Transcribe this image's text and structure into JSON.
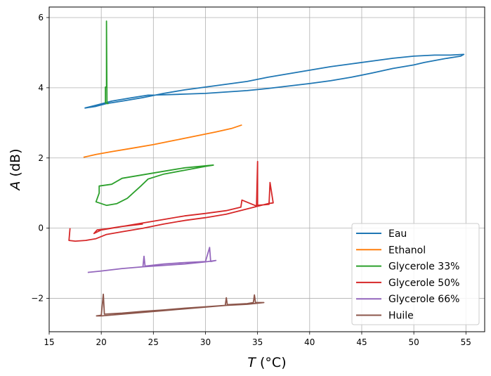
{
  "chart_data": {
    "type": "line",
    "xlabel_var": "T",
    "xlabel_unit": " (°C)",
    "ylabel_var": "A",
    "ylabel_unit": " (dB)",
    "xlim": [
      15,
      56.8
    ],
    "ylim": [
      -2.95,
      6.3
    ],
    "xticks": [
      15,
      20,
      25,
      30,
      35,
      40,
      45,
      50,
      55
    ],
    "yticks": [
      -2,
      0,
      2,
      4,
      6
    ],
    "ytick_labels": [
      "−2",
      "0",
      "2",
      "4",
      "6"
    ],
    "grid": true,
    "legend_position": "bottom-right",
    "series": [
      {
        "name": "Eau",
        "color": "#1f77b4",
        "points": [
          [
            18.4,
            3.42
          ],
          [
            19.5,
            3.47
          ],
          [
            20.5,
            3.55
          ],
          [
            22,
            3.62
          ],
          [
            24,
            3.72
          ],
          [
            26,
            3.84
          ],
          [
            28,
            3.94
          ],
          [
            30,
            4.02
          ],
          [
            32,
            4.1
          ],
          [
            34,
            4.18
          ],
          [
            36,
            4.3
          ],
          [
            38,
            4.4
          ],
          [
            40,
            4.5
          ],
          [
            42,
            4.6
          ],
          [
            44,
            4.68
          ],
          [
            46,
            4.76
          ],
          [
            48,
            4.84
          ],
          [
            50,
            4.9
          ],
          [
            52,
            4.93
          ],
          [
            53.5,
            4.93
          ],
          [
            54.8,
            4.95
          ],
          [
            54.5,
            4.9
          ],
          [
            53,
            4.83
          ],
          [
            51,
            4.72
          ],
          [
            50,
            4.65
          ],
          [
            48,
            4.55
          ],
          [
            46,
            4.42
          ],
          [
            44,
            4.3
          ],
          [
            42,
            4.2
          ],
          [
            40,
            4.12
          ],
          [
            38,
            4.05
          ],
          [
            36,
            3.98
          ],
          [
            34,
            3.92
          ],
          [
            32,
            3.88
          ],
          [
            30,
            3.84
          ],
          [
            28,
            3.82
          ],
          [
            26,
            3.8
          ],
          [
            24.5,
            3.79
          ],
          [
            23,
            3.72
          ],
          [
            21,
            3.62
          ],
          [
            19.5,
            3.5
          ],
          [
            18.4,
            3.42
          ]
        ]
      },
      {
        "name": "Ethanol",
        "color": "#ff7f0e",
        "points": [
          [
            18.3,
            2.02
          ],
          [
            19.5,
            2.1
          ],
          [
            21,
            2.18
          ],
          [
            23,
            2.28
          ],
          [
            25,
            2.38
          ],
          [
            27,
            2.5
          ],
          [
            29,
            2.62
          ],
          [
            31,
            2.74
          ],
          [
            32.5,
            2.84
          ],
          [
            33.5,
            2.94
          ]
        ]
      },
      {
        "name": "Glycerole 33%",
        "color": "#2ca02c",
        "points": [
          [
            20.4,
            3.55
          ],
          [
            20.4,
            4.02
          ],
          [
            20.5,
            4.02
          ],
          [
            20.5,
            5.9
          ],
          [
            20.55,
            3.55
          ],
          [
            20.7,
            3.55
          ],
          [
            null,
            null
          ],
          [
            30.8,
            1.8
          ],
          [
            28,
            1.72
          ],
          [
            26,
            1.62
          ],
          [
            24,
            1.52
          ],
          [
            22,
            1.42
          ],
          [
            21,
            1.25
          ],
          [
            19.8,
            1.2
          ],
          [
            19.8,
            1.0
          ],
          [
            19.5,
            0.75
          ],
          [
            20.5,
            0.65
          ],
          [
            21.5,
            0.7
          ],
          [
            22.5,
            0.85
          ],
          [
            23.8,
            1.2
          ],
          [
            24.5,
            1.4
          ],
          [
            26,
            1.54
          ],
          [
            28,
            1.65
          ],
          [
            30,
            1.76
          ],
          [
            30.8,
            1.8
          ]
        ]
      },
      {
        "name": "Glycerole 50%",
        "color": "#d62728",
        "points": [
          [
            17,
            0
          ],
          [
            16.9,
            -0.35
          ],
          [
            17.5,
            -0.37
          ],
          [
            18.5,
            -0.35
          ],
          [
            19.5,
            -0.3
          ],
          [
            20.5,
            -0.18
          ],
          [
            22,
            -0.1
          ],
          [
            24,
            0.0
          ],
          [
            26,
            0.12
          ],
          [
            28,
            0.22
          ],
          [
            30,
            0.3
          ],
          [
            32,
            0.4
          ],
          [
            34,
            0.55
          ],
          [
            36,
            0.7
          ],
          [
            36.5,
            0.72
          ],
          [
            36.2,
            1.3
          ],
          [
            36.1,
            0.68
          ],
          [
            35,
            0.65
          ],
          [
            35,
            1.9
          ],
          [
            34.9,
            0.63
          ],
          [
            33.5,
            0.8
          ],
          [
            33.4,
            0.6
          ],
          [
            32,
            0.5
          ],
          [
            30,
            0.42
          ],
          [
            28,
            0.35
          ],
          [
            26,
            0.25
          ],
          [
            24,
            0.15
          ],
          [
            22,
            0.05
          ],
          [
            20,
            -0.05
          ],
          [
            19.3,
            -0.15
          ],
          [
            19.6,
            -0.05
          ],
          [
            20.5,
            -0.02
          ],
          [
            22,
            0.05
          ],
          [
            24,
            0.12
          ]
        ]
      },
      {
        "name": "Glycerole 66%",
        "color": "#9467bd",
        "points": [
          [
            18.7,
            -1.26
          ],
          [
            20,
            -1.22
          ],
          [
            22,
            -1.15
          ],
          [
            24,
            -1.1
          ],
          [
            24.1,
            -0.8
          ],
          [
            24.2,
            -1.08
          ],
          [
            26,
            -1.02
          ],
          [
            28,
            -0.98
          ],
          [
            30,
            -0.95
          ],
          [
            30.4,
            -0.55
          ],
          [
            30.5,
            -0.95
          ],
          [
            31,
            -0.92
          ],
          [
            30,
            -0.96
          ],
          [
            28,
            -1.02
          ],
          [
            26,
            -1.06
          ],
          [
            24,
            -1.1
          ],
          [
            22,
            -1.15
          ],
          [
            20,
            -1.22
          ],
          [
            18.7,
            -1.26
          ]
        ]
      },
      {
        "name": "Huile",
        "color": "#8c564b",
        "points": [
          [
            19.5,
            -2.5
          ],
          [
            20,
            -2.48
          ],
          [
            20.2,
            -1.88
          ],
          [
            20.3,
            -2.45
          ],
          [
            22,
            -2.42
          ],
          [
            24,
            -2.37
          ],
          [
            26,
            -2.33
          ],
          [
            28,
            -2.28
          ],
          [
            30,
            -2.24
          ],
          [
            31.9,
            -2.2
          ],
          [
            32,
            -1.98
          ],
          [
            32.1,
            -2.18
          ],
          [
            34,
            -2.15
          ],
          [
            34.6,
            -2.12
          ],
          [
            34.7,
            -1.9
          ],
          [
            34.8,
            -2.12
          ],
          [
            35.6,
            -2.12
          ],
          [
            34,
            -2.17
          ],
          [
            32,
            -2.2
          ],
          [
            30,
            -2.25
          ],
          [
            28,
            -2.3
          ],
          [
            26,
            -2.35
          ],
          [
            24,
            -2.4
          ],
          [
            22,
            -2.45
          ],
          [
            20,
            -2.5
          ],
          [
            19.5,
            -2.5
          ]
        ]
      }
    ]
  }
}
